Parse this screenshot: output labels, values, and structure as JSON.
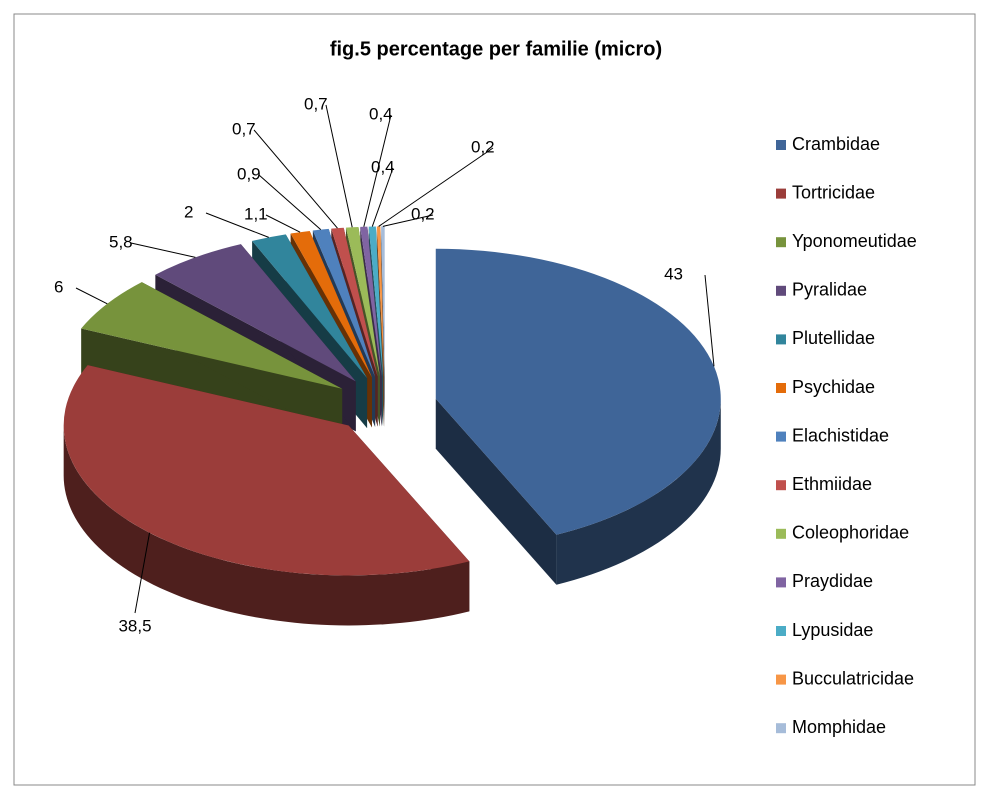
{
  "chart_data": {
    "type": "pie",
    "title": "fig.5 percentage per familie (micro)",
    "categories": [
      "Crambidae",
      "Tortricidae",
      "Yponomeutidae",
      "Pyralidae",
      "Plutellidae",
      "Psychidae",
      "Elachistidae",
      "Ethmiidae",
      "Coleophoridae",
      "Praydidae",
      "Lypusidae",
      "Bucculatricidae",
      "Momphidae"
    ],
    "values": [
      43,
      38.5,
      6,
      5.8,
      2,
      1.1,
      0.9,
      0.7,
      0.7,
      0.4,
      0.4,
      0.2,
      0.2
    ],
    "value_labels": [
      "43",
      "38,5",
      "6",
      "5,8",
      "2",
      "1,1",
      "0,9",
      "0,7",
      "0,7",
      "0,4",
      "0,4",
      "0,2",
      "0,2"
    ],
    "colors": [
      "#3f6598",
      "#9b3d3a",
      "#77933c",
      "#604a7b",
      "#31859c",
      "#e46c0a",
      "#4f81bd",
      "#c0504d",
      "#9bbb59",
      "#8064a2",
      "#4bacc6",
      "#f79646",
      "#a6bcd9"
    ],
    "legend": "right"
  }
}
